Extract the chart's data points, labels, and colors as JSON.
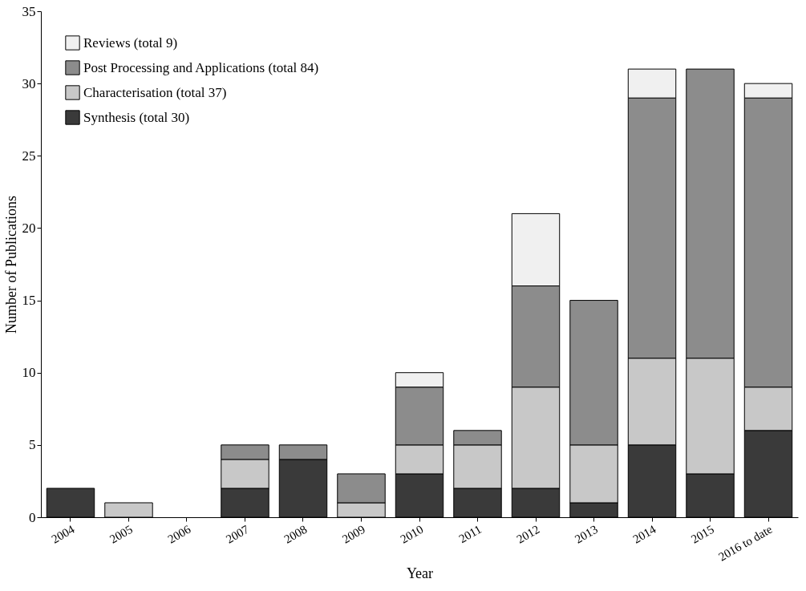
{
  "chart_data": {
    "type": "bar",
    "stacked": true,
    "xlabel": "Year",
    "ylabel": "Number of Publications",
    "categories": [
      "2004",
      "2005",
      "2006",
      "2007",
      "2008",
      "2009",
      "2010",
      "2011",
      "2012",
      "2013",
      "2014",
      "2015",
      "2016 to date"
    ],
    "series": [
      {
        "name": "Synthesis (total 30)",
        "color": "#3a3a3a",
        "values": [
          2,
          0,
          0,
          2,
          4,
          0,
          3,
          2,
          2,
          1,
          5,
          3,
          6
        ]
      },
      {
        "name": "Characterisation (total 37)",
        "color": "#c8c8c8",
        "values": [
          0,
          1,
          0,
          2,
          0,
          1,
          2,
          3,
          7,
          4,
          6,
          8,
          3
        ]
      },
      {
        "name": "Post Processing and Applications (total 84)",
        "color": "#8c8c8c",
        "values": [
          0,
          0,
          0,
          1,
          1,
          2,
          4,
          1,
          7,
          10,
          18,
          20,
          20
        ]
      },
      {
        "name": "Reviews (total 9)",
        "color": "#f0f0f0",
        "values": [
          0,
          0,
          0,
          0,
          0,
          0,
          1,
          0,
          5,
          0,
          2,
          0,
          1
        ]
      }
    ],
    "ylim": [
      0,
      35
    ],
    "yticks": [
      0,
      5,
      10,
      15,
      20,
      25,
      30,
      35
    ],
    "grid": false,
    "legend": "top left"
  }
}
